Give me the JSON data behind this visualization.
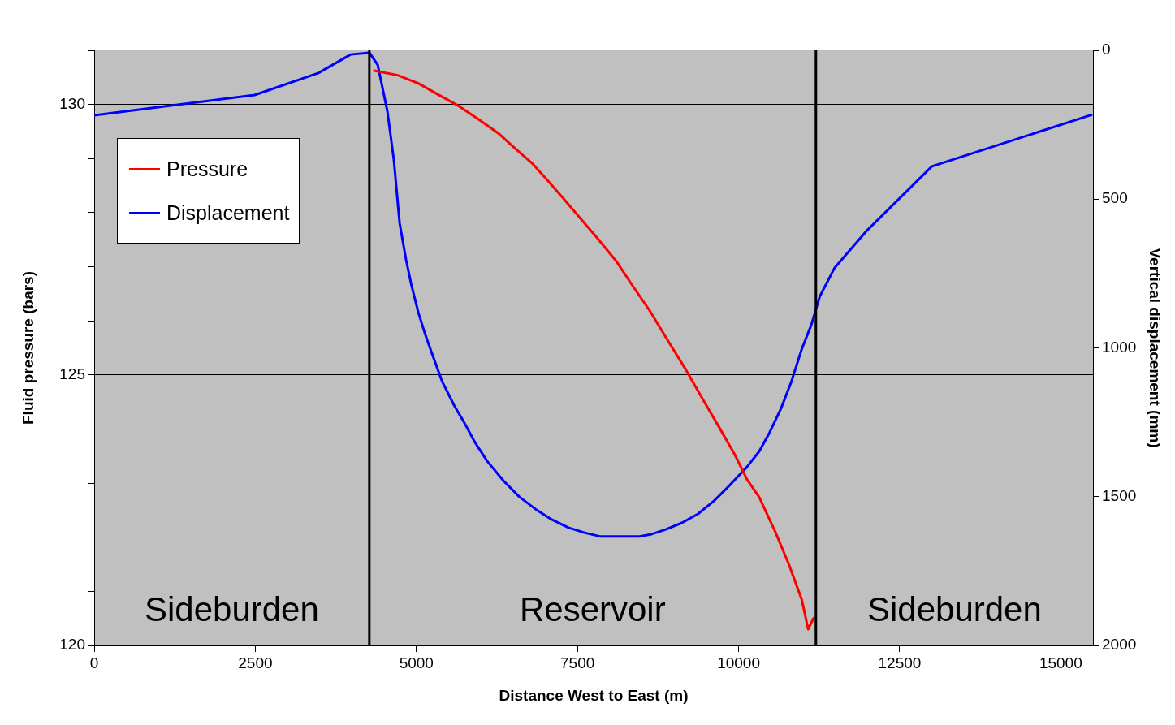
{
  "chart_data": {
    "type": "line",
    "xlabel": "Distance West to East (m)",
    "ylabel": "Fluid pressure (bars)",
    "y2label": "Vertical displacement (mm)",
    "xlim": [
      0,
      15500
    ],
    "xticks": [
      0,
      2500,
      5000,
      7500,
      10000,
      12500,
      15000
    ],
    "ylim": [
      120,
      131
    ],
    "yticks": [
      120,
      {
        "value": 121,
        "label": null
      },
      {
        "value": 122,
        "label": null
      },
      {
        "value": 123,
        "label": null
      },
      {
        "value": 124,
        "label": null
      },
      125,
      {
        "value": 126,
        "label": null
      },
      {
        "value": 127,
        "label": null
      },
      {
        "value": 128,
        "label": null
      },
      {
        "value": 129,
        "label": null
      },
      130,
      {
        "value": 131,
        "label": null
      }
    ],
    "y2lim": [
      2000,
      0
    ],
    "y2ticks": [
      0,
      500,
      1000,
      1500,
      2000
    ],
    "grid": "y",
    "legend": "top left",
    "marker": "none",
    "line_style": "solid",
    "ref_lines": [
      {
        "axis": "x",
        "value": 4270,
        "color": "#000000"
      },
      {
        "axis": "x",
        "value": 11200,
        "color": "#000000"
      }
    ],
    "annotations": [
      "Sideburden",
      "Reservoir",
      "Sideburden"
    ],
    "series": [
      {
        "name": "Pressure",
        "color": "#ff0000",
        "x": [
          4330,
          4710,
          5030,
          5340,
          5660,
          5970,
          6290,
          6540,
          6790,
          7040,
          7290,
          7540,
          7800,
          8110,
          8360,
          8620,
          8870,
          9180,
          9430,
          9690,
          9940,
          10130,
          10320,
          10570,
          10780,
          10980,
          11080,
          11170
        ],
        "values": [
          130.63,
          130.54,
          130.39,
          130.18,
          129.97,
          129.72,
          129.45,
          129.18,
          128.92,
          128.59,
          128.25,
          127.9,
          127.54,
          127.09,
          126.64,
          126.19,
          125.7,
          125.1,
          124.58,
          124.05,
          123.53,
          123.07,
          122.74,
          122.1,
          121.5,
          120.85,
          120.3,
          120.52
        ]
      },
      {
        "name": "Displacement",
        "color": "#0000ff",
        "axis": "y2",
        "x": [
          0,
          2490,
          3480,
          3980,
          4270,
          4400,
          4550,
          4650,
          4740,
          4840,
          4920,
          5030,
          5130,
          5240,
          5400,
          5590,
          5740,
          5910,
          6100,
          6350,
          6600,
          6850,
          7100,
          7360,
          7610,
          7860,
          8450,
          8650,
          8870,
          9120,
          9370,
          9620,
          9870,
          10130,
          10320,
          10480,
          10660,
          10820,
          10980,
          11130,
          11260,
          11490,
          11990,
          13000,
          15490
        ],
        "values": [
          218,
          150,
          76,
          14,
          8,
          49,
          205,
          368,
          581,
          704,
          786,
          881,
          950,
          1018,
          1113,
          1195,
          1250,
          1318,
          1381,
          1446,
          1501,
          1542,
          1577,
          1604,
          1621,
          1634,
          1634,
          1626,
          1610,
          1588,
          1558,
          1514,
          1460,
          1400,
          1348,
          1285,
          1203,
          1113,
          1004,
          922,
          827,
          731,
          606,
          390,
          216
        ]
      }
    ]
  }
}
